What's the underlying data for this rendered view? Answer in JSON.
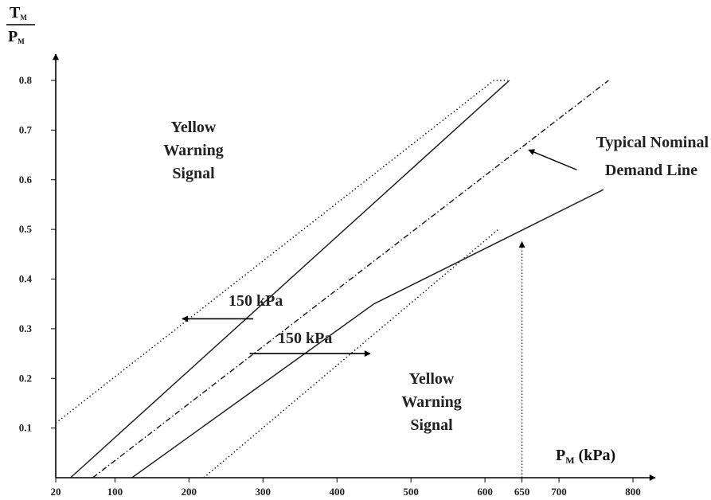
{
  "chart_data": {
    "type": "line",
    "title": "",
    "y_axis": {
      "label_top": "T",
      "label_top_sub": "M",
      "label_bottom": "P",
      "label_bottom_sub": "M",
      "ticks": [
        {
          "value": 0.1,
          "label": "0.1"
        },
        {
          "value": 0.2,
          "label": "0.2"
        },
        {
          "value": 0.3,
          "label": "0.3"
        },
        {
          "value": 0.4,
          "label": "0.4"
        },
        {
          "value": 0.5,
          "label": "0.5"
        },
        {
          "value": 0.6,
          "label": "0.6"
        },
        {
          "value": 0.7,
          "label": "0.7"
        },
        {
          "value": 0.8,
          "label": "0.8"
        }
      ],
      "ylim": [
        0,
        0.82
      ]
    },
    "x_axis": {
      "label_main": "P",
      "label_sub": "M",
      "label_unit": " (kPa)",
      "ticks": [
        {
          "value": 20,
          "label": "20"
        },
        {
          "value": 100,
          "label": "100"
        },
        {
          "value": 200,
          "label": "200"
        },
        {
          "value": 300,
          "label": "300"
        },
        {
          "value": 400,
          "label": "400"
        },
        {
          "value": 500,
          "label": "500"
        },
        {
          "value": 600,
          "label": "600"
        },
        {
          "value": 650,
          "label": "650"
        },
        {
          "value": 700,
          "label": "700"
        },
        {
          "value": 800,
          "label": "800"
        }
      ],
      "xlim": [
        20,
        825
      ]
    },
    "series": [
      {
        "style": "dotted",
        "points": [
          [
            20,
            0.11
          ],
          [
            612,
            0.8
          ],
          [
            631,
            0.8
          ]
        ]
      },
      {
        "style": "solid",
        "points": [
          [
            40,
            0.0
          ],
          [
            633,
            0.8
          ]
        ]
      },
      {
        "style": "dashdot",
        "points": [
          [
            70,
            0.0
          ],
          [
            767,
            0.8
          ]
        ]
      },
      {
        "style": "solid",
        "points": [
          [
            123,
            0.0
          ],
          [
            450,
            0.35
          ],
          [
            760,
            0.58
          ]
        ]
      },
      {
        "style": "dotted",
        "points": [
          [
            220,
            0.0
          ],
          [
            618,
            0.5
          ]
        ]
      }
    ],
    "annotations": {
      "yellow_warning_upper": [
        "Yellow",
        "Warning",
        "Signal"
      ],
      "yellow_warning_lower": [
        "Yellow",
        "Warning",
        "Signal"
      ],
      "nominal_demand": [
        "Typical Nominal",
        "Demand Line"
      ],
      "arrow_left_label": "150 kPa",
      "arrow_right_label": "150 kPa",
      "arrow_left": {
        "from": [
          287,
          0.32
        ],
        "to": [
          191,
          0.32
        ]
      },
      "arrow_right": {
        "from": [
          282,
          0.25
        ],
        "to": [
          445,
          0.25
        ]
      },
      "nominal_arrow": {
        "from": [
          724,
          0.62
        ],
        "to": [
          659,
          0.66
        ]
      },
      "vertical_arrow": {
        "x": 650,
        "from": 0.0,
        "to": 0.475
      }
    }
  }
}
